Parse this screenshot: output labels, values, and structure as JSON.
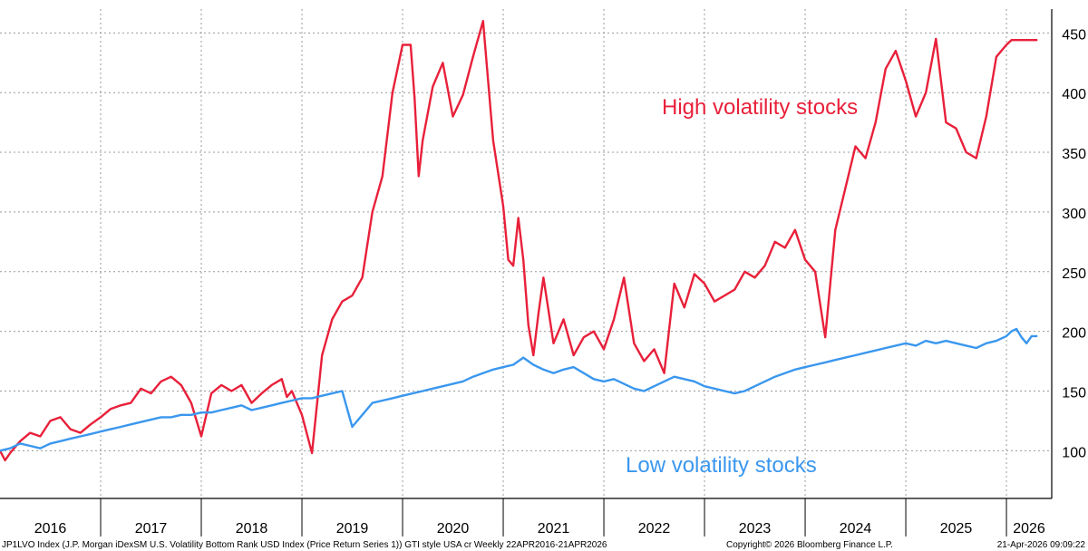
{
  "chart_data": {
    "type": "line",
    "xlim": [
      2016.0,
      2026.45
    ],
    "ylim": [
      60,
      470
    ],
    "y_ticks": [
      100,
      150,
      200,
      250,
      300,
      350,
      400,
      450
    ],
    "y_tick_labels": [
      "100",
      "150",
      "200",
      "250",
      "300",
      "350",
      "400",
      "450"
    ],
    "year_labels": [
      {
        "label": "2016",
        "year": 2016
      },
      {
        "label": "2017",
        "year": 2017
      },
      {
        "label": "2018",
        "year": 2018
      },
      {
        "label": "2019",
        "year": 2019
      },
      {
        "label": "2020",
        "year": 2020
      },
      {
        "label": "2021",
        "year": 2021
      },
      {
        "label": "2022",
        "year": 2022
      },
      {
        "label": "2023",
        "year": 2023
      },
      {
        "label": "2024",
        "year": 2024
      },
      {
        "label": "2025",
        "year": 2025
      },
      {
        "label": "2026",
        "year": 2026
      }
    ],
    "grid": true,
    "series": [
      {
        "name": "High volatility stocks",
        "color": "#e8203a",
        "x": [
          2016.0,
          2016.05,
          2016.1,
          2016.2,
          2016.3,
          2016.4,
          2016.5,
          2016.6,
          2016.7,
          2016.8,
          2016.9,
          2017.0,
          2017.1,
          2017.2,
          2017.3,
          2017.4,
          2017.5,
          2017.6,
          2017.7,
          2017.8,
          2017.9,
          2018.0,
          2018.1,
          2018.2,
          2018.3,
          2018.4,
          2018.5,
          2018.6,
          2018.7,
          2018.8,
          2018.85,
          2018.9,
          2019.0,
          2019.1,
          2019.2,
          2019.3,
          2019.4,
          2019.5,
          2019.6,
          2019.7,
          2019.8,
          2019.9,
          2020.0,
          2020.08,
          2020.12,
          2020.16,
          2020.2,
          2020.3,
          2020.4,
          2020.5,
          2020.6,
          2020.7,
          2020.8,
          2020.9,
          2021.0,
          2021.05,
          2021.1,
          2021.15,
          2021.2,
          2021.25,
          2021.3,
          2021.35,
          2021.4,
          2021.5,
          2021.6,
          2021.7,
          2021.8,
          2021.9,
          2022.0,
          2022.1,
          2022.2,
          2022.3,
          2022.4,
          2022.5,
          2022.6,
          2022.7,
          2022.8,
          2022.9,
          2023.0,
          2023.1,
          2023.2,
          2023.3,
          2023.4,
          2023.5,
          2023.6,
          2023.7,
          2023.8,
          2023.9,
          2024.0,
          2024.1,
          2024.2,
          2024.3,
          2024.4,
          2024.5,
          2024.6,
          2024.7,
          2024.8,
          2024.9,
          2025.0,
          2025.1,
          2025.2,
          2025.3,
          2025.4,
          2025.5,
          2025.6,
          2025.7,
          2025.8,
          2025.9,
          2026.0,
          2026.05,
          2026.1,
          2026.15,
          2026.2,
          2026.25,
          2026.3
        ],
        "values": [
          100,
          92,
          98,
          108,
          115,
          112,
          125,
          128,
          118,
          115,
          122,
          128,
          135,
          138,
          140,
          152,
          148,
          158,
          162,
          155,
          140,
          112,
          148,
          155,
          150,
          155,
          140,
          148,
          155,
          160,
          145,
          150,
          130,
          98,
          180,
          210,
          225,
          230,
          245,
          300,
          330,
          400,
          440,
          440,
          395,
          330,
          360,
          405,
          425,
          380,
          398,
          430,
          460,
          360,
          305,
          260,
          255,
          295,
          260,
          205,
          180,
          215,
          245,
          190,
          210,
          180,
          195,
          200,
          185,
          210,
          245,
          190,
          175,
          185,
          165,
          240,
          220,
          248,
          240,
          225,
          230,
          235,
          250,
          245,
          255,
          275,
          270,
          285,
          260,
          250,
          195,
          285,
          320,
          355,
          345,
          375,
          420,
          435,
          410,
          380,
          400,
          445,
          375,
          370,
          350,
          345,
          380,
          430,
          440,
          444,
          444,
          444,
          444,
          444,
          444
        ]
      },
      {
        "name": "Low volatility stocks",
        "color": "#3a97ee",
        "x": [
          2016.0,
          2016.1,
          2016.2,
          2016.3,
          2016.4,
          2016.5,
          2016.6,
          2016.7,
          2016.8,
          2016.9,
          2017.0,
          2017.1,
          2017.2,
          2017.3,
          2017.4,
          2017.5,
          2017.6,
          2017.7,
          2017.8,
          2017.9,
          2018.0,
          2018.1,
          2018.2,
          2018.3,
          2018.4,
          2018.5,
          2018.6,
          2018.7,
          2018.8,
          2018.9,
          2019.0,
          2019.1,
          2019.2,
          2019.3,
          2019.4,
          2019.5,
          2019.6,
          2019.7,
          2019.8,
          2019.9,
          2020.0,
          2020.1,
          2020.2,
          2020.3,
          2020.4,
          2020.5,
          2020.6,
          2020.7,
          2020.8,
          2020.9,
          2021.0,
          2021.1,
          2021.2,
          2021.3,
          2021.4,
          2021.5,
          2021.6,
          2021.7,
          2021.8,
          2021.9,
          2022.0,
          2022.1,
          2022.2,
          2022.3,
          2022.4,
          2022.5,
          2022.6,
          2022.7,
          2022.8,
          2022.9,
          2023.0,
          2023.1,
          2023.2,
          2023.3,
          2023.4,
          2023.5,
          2023.6,
          2023.7,
          2023.8,
          2023.9,
          2024.0,
          2024.1,
          2024.2,
          2024.3,
          2024.4,
          2024.5,
          2024.6,
          2024.7,
          2024.8,
          2024.9,
          2025.0,
          2025.1,
          2025.2,
          2025.3,
          2025.4,
          2025.5,
          2025.6,
          2025.7,
          2025.8,
          2025.9,
          2026.0,
          2026.05,
          2026.1,
          2026.15,
          2026.2,
          2026.25,
          2026.3
        ],
        "values": [
          100,
          102,
          106,
          104,
          102,
          106,
          108,
          110,
          112,
          114,
          116,
          118,
          120,
          122,
          124,
          126,
          128,
          128,
          130,
          130,
          132,
          132,
          134,
          136,
          138,
          134,
          136,
          138,
          140,
          142,
          144,
          144,
          146,
          148,
          150,
          120,
          130,
          140,
          142,
          144,
          146,
          148,
          150,
          152,
          154,
          156,
          158,
          162,
          165,
          168,
          170,
          172,
          178,
          172,
          168,
          165,
          168,
          170,
          165,
          160,
          158,
          160,
          156,
          152,
          150,
          154,
          158,
          162,
          160,
          158,
          154,
          152,
          150,
          148,
          150,
          154,
          158,
          162,
          165,
          168,
          170,
          172,
          174,
          176,
          178,
          180,
          182,
          184,
          186,
          188,
          190,
          188,
          192,
          190,
          192,
          190,
          188,
          186,
          190,
          192,
          196,
          200,
          202,
          195,
          190,
          196,
          196
        ]
      }
    ],
    "annotations": [
      {
        "text": "High volatility stocks",
        "color": "#e8203a"
      },
      {
        "text": "Low volatility stocks",
        "color": "#3a97ee"
      }
    ],
    "footer_left": "JP1LVO Index (J.P. Morgan iDexSM U.S. Volatility Bottom Rank USD Index (Price Return Series 1)) GTI style USA cr Weekly 22APR2016-21APR2026",
    "footer_center": "Copyright© 2026 Bloomberg Finance L.P.",
    "footer_right": "21-Apr-2026 09:09:22"
  }
}
